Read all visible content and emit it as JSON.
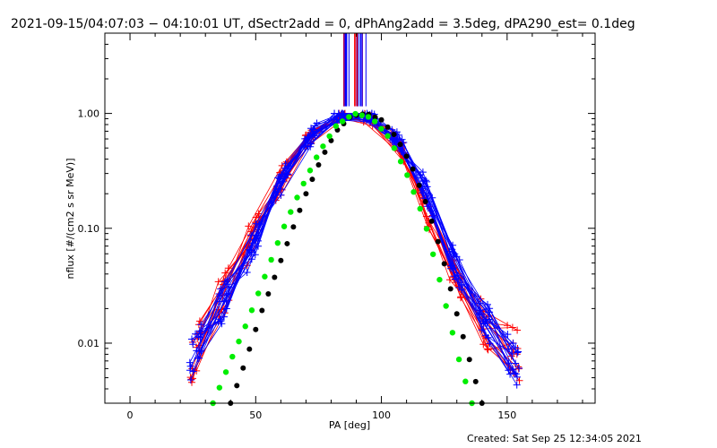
{
  "chart_data": {
    "type": "scatter",
    "title": "2021-09-15/04:07:03 − 04:10:01 UT, dSectr2add = 0, dPhAng2add = 3.5deg, dPA290_est=  0.1deg",
    "footer": "Created: Sat Sep 25 12:34:05 2021",
    "xlabel": "PA [deg]",
    "ylabel": "nflux [#/(cm2 s sr MeV)]",
    "xlim": [
      -10,
      185
    ],
    "ylim": [
      0.003,
      5.0
    ],
    "yscale": "log",
    "x_ticks": [
      0,
      50,
      100,
      150
    ],
    "x_tick_labels": [
      "0",
      "50",
      "100",
      "150"
    ],
    "y_ticks": [
      0.01,
      0.1,
      1.0
    ],
    "y_tick_labels": [
      "0.01",
      "0.10",
      "1.00"
    ],
    "grid": false,
    "legend": "none",
    "colors": {
      "red_series": "#ff0000",
      "blue_series": "#0000ff",
      "green_fit": "#00ee00",
      "black_fit": "#000000",
      "axes": "#000000"
    },
    "series": [
      {
        "style": "red crosses with lines",
        "color": "#ff0000",
        "x": [
          25,
          32,
          40,
          50,
          58,
          65,
          75,
          84,
          92,
          100,
          108,
          115,
          122,
          130,
          140,
          150,
          155
        ],
        "y": [
          0.006,
          0.018,
          0.035,
          0.1,
          0.22,
          0.4,
          0.8,
          0.98,
          0.95,
          0.8,
          0.5,
          0.22,
          0.08,
          0.035,
          0.015,
          0.01,
          0.007
        ]
      },
      {
        "style": "blue crosses with lines",
        "color": "#0000ff",
        "x": [
          24,
          30,
          40,
          50,
          58,
          65,
          75,
          82,
          90,
          98,
          106,
          115,
          122,
          130,
          140,
          150,
          155
        ],
        "y": [
          0.007,
          0.012,
          0.03,
          0.08,
          0.2,
          0.4,
          0.75,
          0.95,
          1.0,
          0.9,
          0.62,
          0.3,
          0.12,
          0.045,
          0.018,
          0.008,
          0.006
        ]
      },
      {
        "style": "green filled circles (fit)",
        "color": "#00ee00",
        "x": [
          33,
          40,
          47,
          54,
          61,
          68,
          75,
          82,
          89,
          96,
          103,
          110,
          117,
          124,
          131,
          136
        ],
        "y": [
          0.003,
          0.007,
          0.016,
          0.04,
          0.1,
          0.22,
          0.45,
          0.78,
          1.0,
          0.92,
          0.62,
          0.3,
          0.12,
          0.03,
          0.007,
          0.003
        ]
      },
      {
        "style": "black filled circles (fit)",
        "color": "#000000",
        "x": [
          40,
          46,
          52,
          58,
          64,
          70,
          76,
          82,
          88,
          94,
          100,
          106,
          112,
          118,
          124,
          130,
          136,
          140
        ],
        "y": [
          0.003,
          0.007,
          0.018,
          0.04,
          0.09,
          0.2,
          0.4,
          0.7,
          0.95,
          1.0,
          0.88,
          0.62,
          0.35,
          0.16,
          0.06,
          0.018,
          0.006,
          0.003
        ]
      }
    ]
  }
}
